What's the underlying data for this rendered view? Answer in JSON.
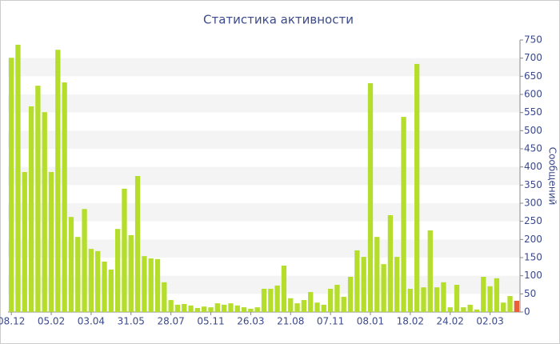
{
  "chart_data": {
    "type": "bar",
    "title": "Статистика активности",
    "y_label": "Сообщений",
    "categories": [
      "08.12",
      null,
      null,
      null,
      null,
      null,
      "05.02",
      null,
      null,
      null,
      null,
      null,
      "03.04",
      null,
      null,
      null,
      null,
      null,
      "31.05",
      null,
      null,
      null,
      null,
      null,
      "28.07",
      null,
      null,
      null,
      null,
      null,
      "05.11",
      null,
      null,
      null,
      null,
      null,
      "26.03",
      null,
      null,
      null,
      null,
      null,
      "21.08",
      null,
      null,
      null,
      null,
      null,
      "07.11",
      null,
      null,
      null,
      null,
      null,
      "08.01",
      null,
      null,
      null,
      null,
      null,
      "18.02",
      null,
      null,
      null,
      null,
      null,
      "24.02",
      null,
      null,
      null,
      null,
      null,
      "02.03",
      null,
      null,
      null,
      null
    ],
    "values": [
      701,
      737,
      386,
      567,
      624,
      551,
      386,
      723,
      633,
      262,
      207,
      284,
      174,
      168,
      139,
      117,
      229,
      340,
      212,
      375,
      154,
      148,
      146,
      82,
      33,
      20,
      22,
      18,
      11,
      15,
      13,
      24,
      20,
      24,
      18,
      13,
      9,
      13,
      64,
      64,
      73,
      128,
      38,
      24,
      33,
      55,
      26,
      20,
      64,
      75,
      42,
      97,
      170,
      152,
      631,
      207,
      132,
      267,
      152,
      538,
      64,
      684,
      68,
      225,
      68,
      82,
      13,
      75,
      13,
      20,
      7,
      97,
      71,
      93,
      26,
      44,
      31
    ],
    "color": "#b5de2c",
    "highlight": {
      "index": 76,
      "color": "#e8603a"
    },
    "ylim": [
      0,
      750
    ],
    "yticks": [
      0,
      50,
      100,
      150,
      200,
      250,
      300,
      350,
      400,
      450,
      500,
      550,
      600,
      650,
      700,
      750
    ],
    "grid": "stripes"
  }
}
